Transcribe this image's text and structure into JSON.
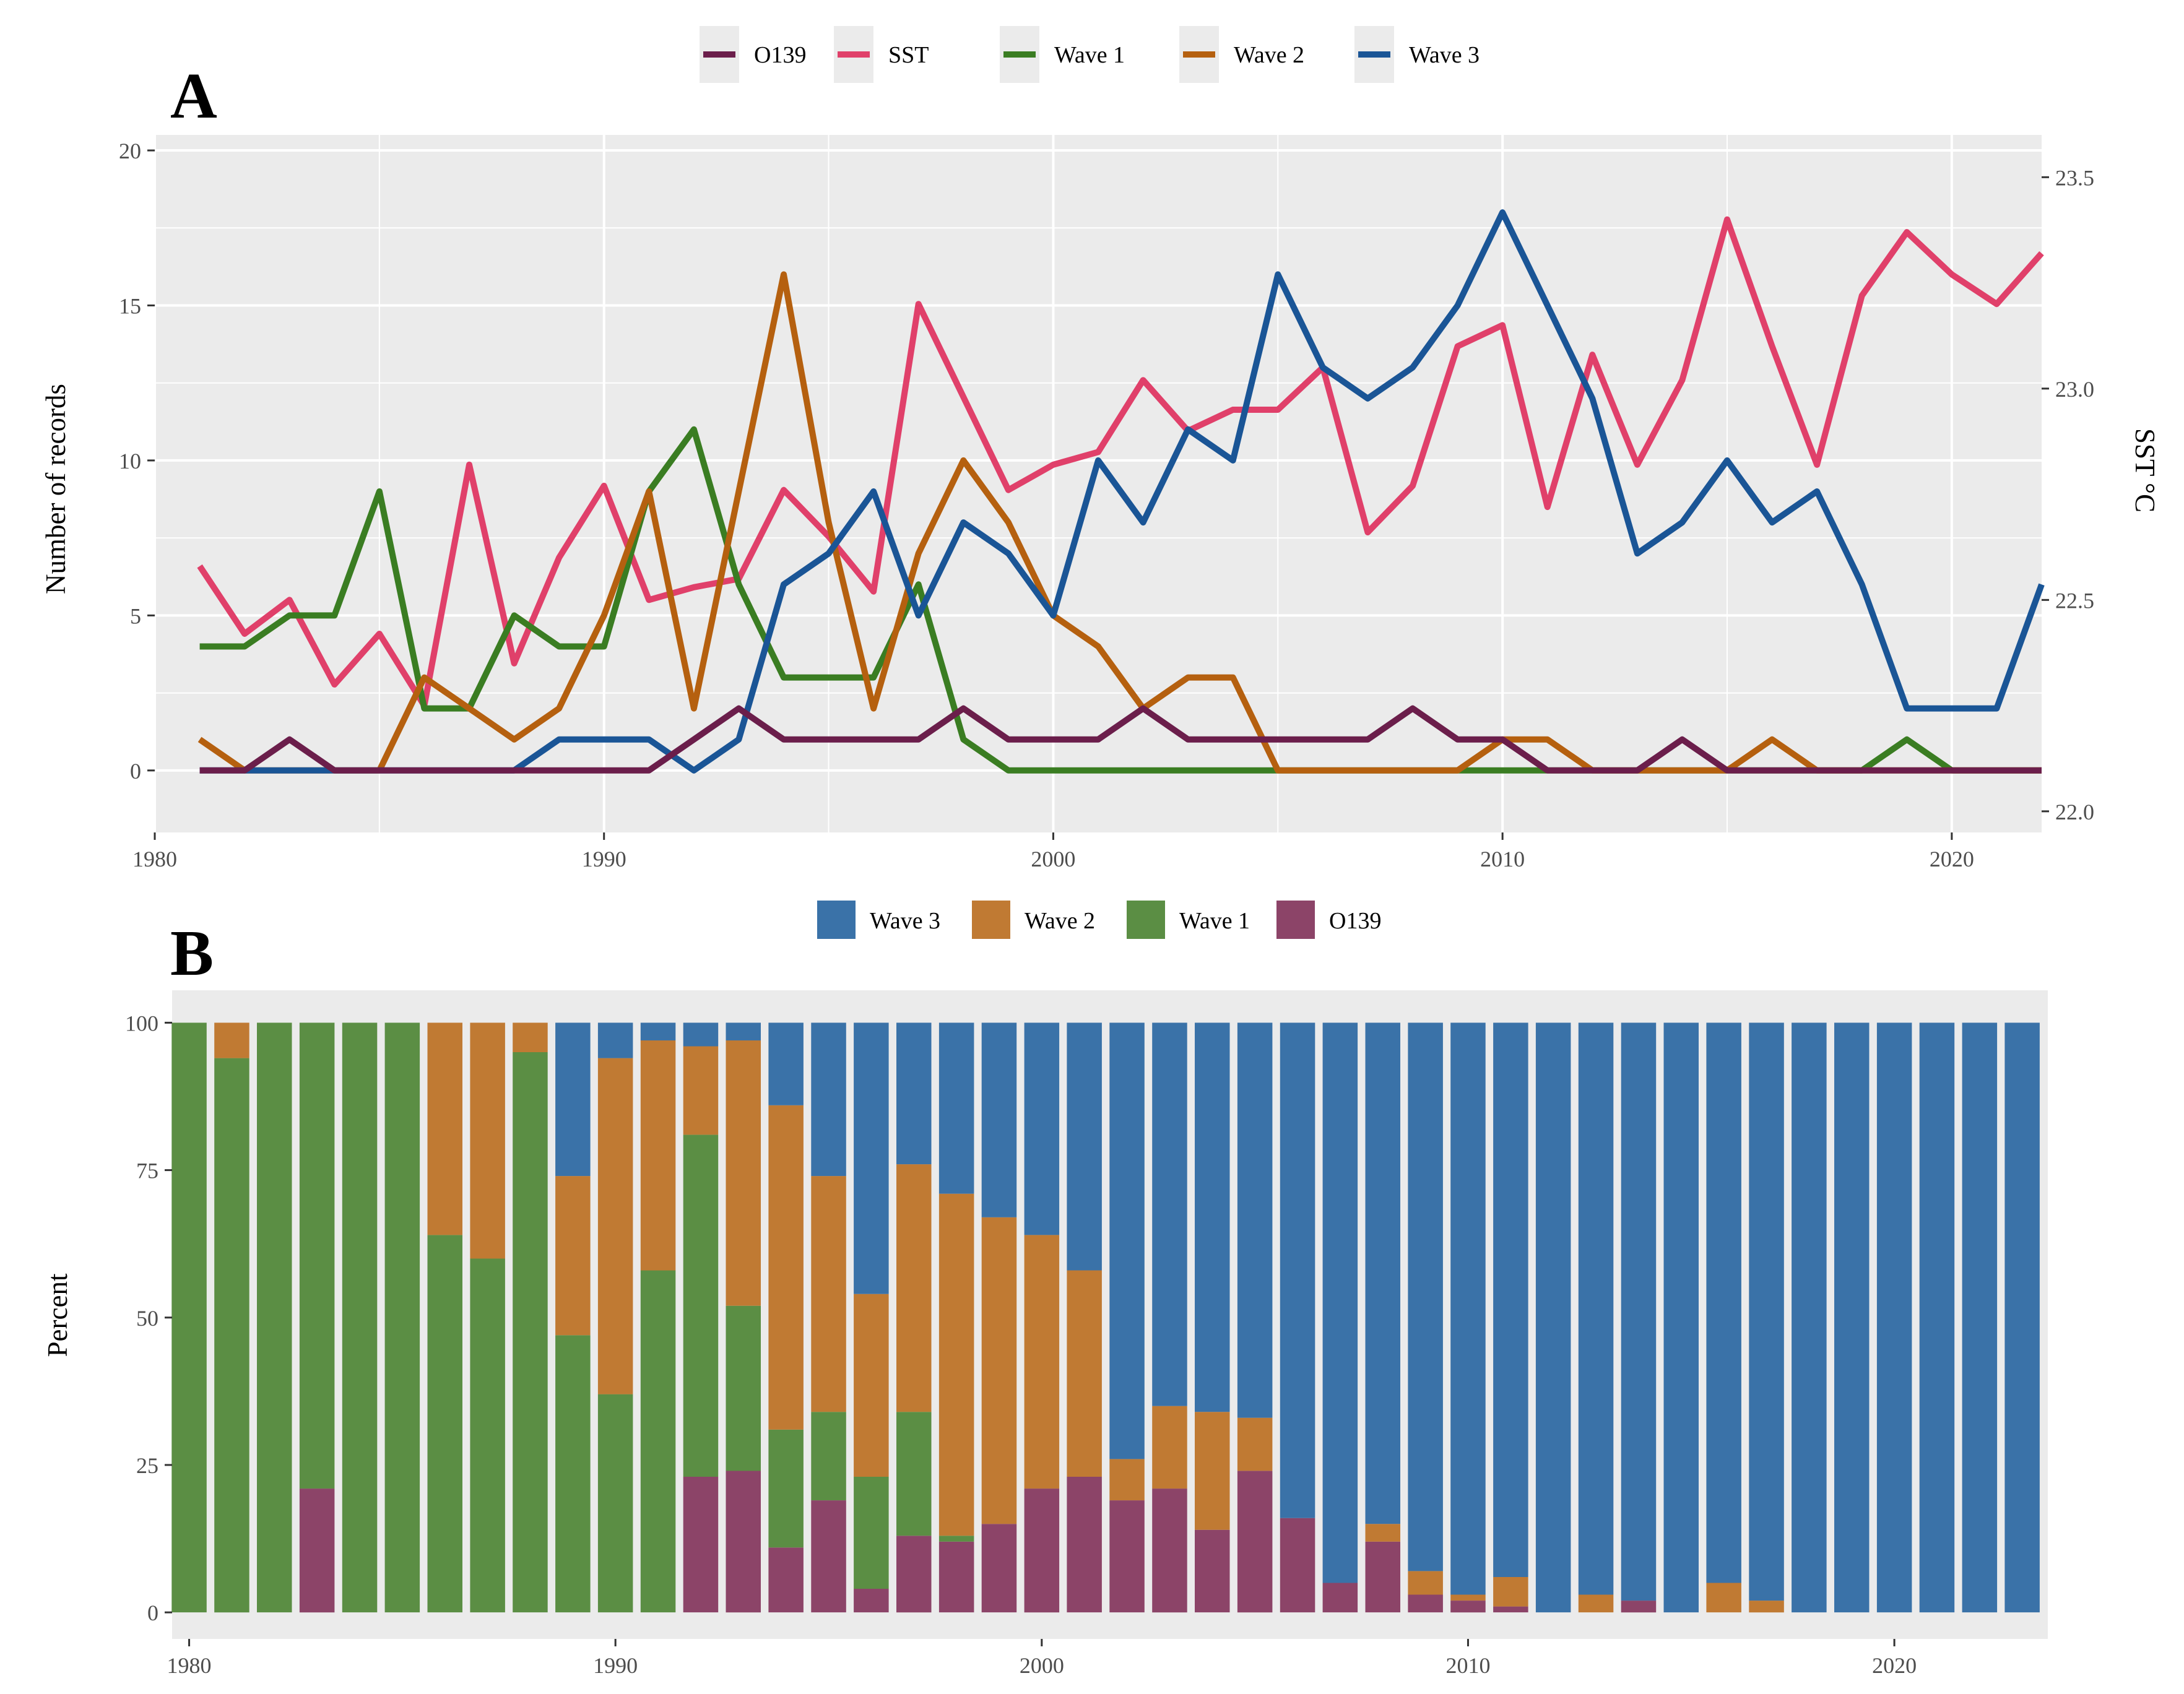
{
  "chart_data": [
    {
      "panel": "A",
      "type": "line",
      "ylabel": "Number of records",
      "y2label": "SST °C",
      "xlim": [
        1980,
        2022
      ],
      "ylim": [
        -2,
        20.5
      ],
      "y2lim": [
        21.95,
        23.6
      ],
      "xticks": [
        1980,
        1990,
        2000,
        2010,
        2020
      ],
      "yticks": [
        0,
        5,
        10,
        15,
        20
      ],
      "y2ticks": [
        "22.0",
        "22.5",
        "23.0",
        "23.5"
      ],
      "legend_position": "top",
      "legend": [
        "O139",
        "SST",
        "Wave 1",
        "Wave 2",
        "Wave 3"
      ],
      "x": [
        1981,
        1982,
        1983,
        1984,
        1985,
        1986,
        1987,
        1988,
        1989,
        1990,
        1991,
        1992,
        1993,
        1994,
        1995,
        1996,
        1997,
        1998,
        1999,
        2000,
        2001,
        2002,
        2003,
        2004,
        2005,
        2006,
        2007,
        2008,
        2009,
        2010,
        2011,
        2012,
        2013,
        2014,
        2015,
        2016,
        2017,
        2018,
        2019,
        2020,
        2021,
        2022
      ],
      "series": [
        {
          "name": "O139",
          "color": "#6b1e4b",
          "axis": "left",
          "values": [
            0,
            0,
            1,
            0,
            0,
            0,
            0,
            0,
            0,
            0,
            0,
            1,
            2,
            1,
            1,
            1,
            1,
            2,
            1,
            1,
            1,
            2,
            1,
            1,
            1,
            1,
            1,
            2,
            1,
            1,
            0,
            0,
            0,
            1,
            0,
            0,
            0,
            0,
            0,
            0,
            0,
            0
          ]
        },
        {
          "name": "SST",
          "color": "#e0406a",
          "axis": "right",
          "values": [
            22.58,
            22.42,
            22.5,
            22.3,
            22.42,
            22.25,
            22.82,
            22.35,
            22.6,
            22.77,
            22.5,
            22.53,
            22.55,
            22.76,
            22.65,
            22.52,
            23.2,
            22.98,
            22.76,
            22.82,
            22.85,
            23.02,
            22.9,
            22.95,
            22.95,
            23.05,
            22.66,
            22.77,
            23.1,
            23.15,
            22.72,
            23.08,
            22.82,
            23.02,
            23.4,
            23.1,
            22.82,
            23.22,
            23.37,
            23.27,
            23.2,
            23.32
          ]
        },
        {
          "name": "Wave 1",
          "color": "#3a7d22",
          "axis": "left",
          "values": [
            4,
            4,
            5,
            5,
            9,
            2,
            2,
            5,
            4,
            4,
            9,
            11,
            6,
            3,
            3,
            3,
            6,
            1,
            0,
            0,
            0,
            0,
            0,
            0,
            0,
            0,
            0,
            0,
            0,
            0,
            0,
            0,
            0,
            0,
            0,
            0,
            0,
            0,
            1,
            0,
            0,
            0
          ]
        },
        {
          "name": "Wave 2",
          "color": "#b5600f",
          "axis": "left",
          "values": [
            1,
            0,
            0,
            0,
            0,
            3,
            2,
            1,
            2,
            5,
            9,
            2,
            9,
            16,
            8,
            2,
            7,
            10,
            8,
            5,
            4,
            2,
            3,
            3,
            0,
            0,
            0,
            0,
            0,
            1,
            1,
            0,
            0,
            0,
            0,
            1,
            0,
            0,
            0,
            0,
            0,
            0
          ]
        },
        {
          "name": "Wave 3",
          "color": "#1a5596",
          "axis": "left",
          "values": [
            0,
            0,
            0,
            0,
            0,
            0,
            0,
            0,
            1,
            1,
            1,
            0,
            1,
            6,
            7,
            9,
            5,
            8,
            7,
            5,
            10,
            8,
            11,
            10,
            16,
            13,
            12,
            13,
            15,
            18,
            15,
            12,
            7,
            8,
            10,
            8,
            9,
            6,
            2,
            2,
            2,
            6
          ]
        }
      ]
    },
    {
      "panel": "B",
      "type": "bar",
      "stacked": true,
      "ylabel": "Percent",
      "xlim": [
        1979.6,
        2023.6
      ],
      "ylim": [
        -4.5,
        105.5
      ],
      "xticks": [
        1980,
        1990,
        2000,
        2010,
        2020
      ],
      "yticks": [
        0,
        25,
        50,
        75,
        100
      ],
      "legend_position": "top",
      "legend": [
        "Wave 3",
        "Wave 2",
        "Wave 1",
        "O139"
      ],
      "stack_order_bottom_to_top": [
        "O139",
        "Wave 1",
        "Wave 2",
        "Wave 3"
      ],
      "colors": {
        "Wave 3": "#3a72a8",
        "Wave 2": "#c07a33",
        "Wave 1": "#5b8e44",
        "O139": "#8c4468"
      },
      "x": [
        1980,
        1981,
        1982,
        1983,
        1984,
        1985,
        1986,
        1987,
        1988,
        1989,
        1990,
        1991,
        1992,
        1993,
        1994,
        1995,
        1996,
        1997,
        1998,
        1999,
        2000,
        2001,
        2002,
        2003,
        2004,
        2005,
        2006,
        2007,
        2008,
        2009,
        2010,
        2011,
        2012,
        2013,
        2014,
        2015,
        2016,
        2017,
        2018,
        2019,
        2020,
        2021,
        2022,
        2023
      ],
      "series": [
        {
          "name": "O139",
          "values": [
            0,
            0,
            0,
            21,
            0,
            0,
            0,
            0,
            0,
            0,
            0,
            0,
            23,
            24,
            11,
            19,
            4,
            13,
            12,
            15,
            21,
            23,
            19,
            21,
            14,
            24,
            16,
            5,
            12,
            3,
            2,
            1,
            0,
            0,
            2,
            0,
            0,
            0,
            0,
            0,
            0,
            0,
            0,
            0
          ]
        },
        {
          "name": "Wave 1",
          "values": [
            100,
            94,
            100,
            79,
            100,
            100,
            64,
            60,
            95,
            47,
            37,
            58,
            58,
            28,
            20,
            15,
            19,
            21,
            1,
            0,
            0,
            0,
            0,
            0,
            0,
            0,
            0,
            0,
            0,
            0,
            0,
            0,
            0,
            0,
            0,
            0,
            0,
            0,
            0,
            0,
            0,
            0,
            0,
            0
          ]
        },
        {
          "name": "Wave 2",
          "values": [
            0,
            6,
            0,
            0,
            0,
            0,
            36,
            40,
            5,
            27,
            57,
            39,
            15,
            45,
            55,
            40,
            31,
            42,
            58,
            52,
            43,
            35,
            7,
            14,
            20,
            9,
            0,
            0,
            3,
            4,
            1,
            5,
            0,
            3,
            0,
            0,
            5,
            2,
            0,
            0,
            0,
            0,
            0,
            0
          ]
        },
        {
          "name": "Wave 3",
          "values": [
            0,
            0,
            0,
            0,
            0,
            0,
            0,
            0,
            0,
            26,
            6,
            3,
            4,
            3,
            14,
            26,
            46,
            24,
            29,
            33,
            36,
            42,
            74,
            65,
            66,
            67,
            84,
            95,
            85,
            93,
            97,
            94,
            100,
            97,
            98,
            100,
            95,
            98,
            100,
            100,
            100,
            100,
            100,
            100
          ]
        }
      ]
    }
  ]
}
